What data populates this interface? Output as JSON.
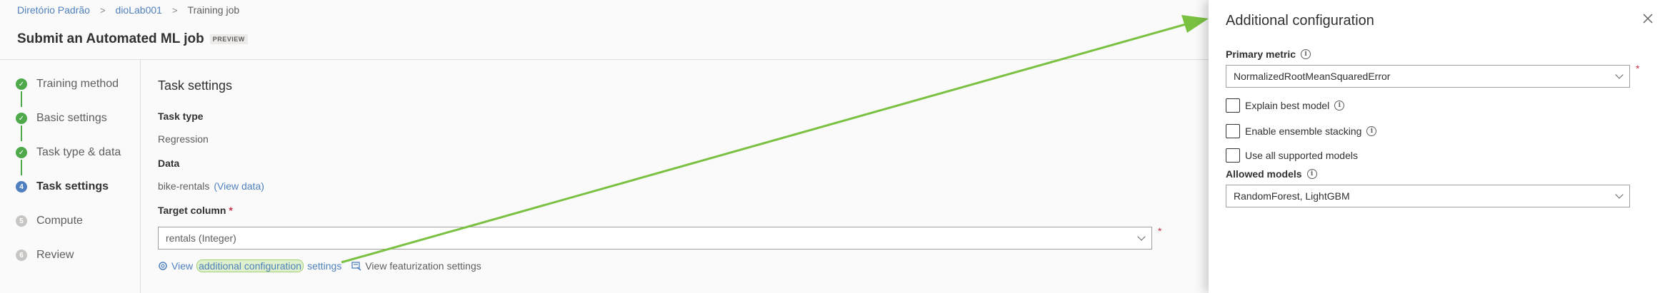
{
  "breadcrumb": {
    "items": [
      "Diretório Padrão",
      "dioLab001",
      "Training job"
    ],
    "separator": ">"
  },
  "page": {
    "title": "Submit an Automated ML job",
    "badge": "PREVIEW"
  },
  "steps": [
    {
      "label": "Training method",
      "status": "done",
      "marker": "✓"
    },
    {
      "label": "Basic settings",
      "status": "done",
      "marker": "✓"
    },
    {
      "label": "Task type & data",
      "status": "done",
      "marker": "✓"
    },
    {
      "label": "Task settings",
      "status": "current",
      "marker": "4"
    },
    {
      "label": "Compute",
      "status": "todo",
      "marker": "5"
    },
    {
      "label": "Review",
      "status": "todo",
      "marker": "6"
    }
  ],
  "task_settings": {
    "title": "Task settings",
    "task_type_label": "Task type",
    "task_type_value": "Regression",
    "data_label": "Data",
    "data_value": "bike-rentals",
    "view_data_link": "(View data)",
    "target_column_label": "Target column",
    "required_marker": "*",
    "target_column_value": "rentals (Integer)",
    "actions": {
      "view_prefix": "View",
      "additional_config_text": "additional configuration",
      "settings_suffix": "settings",
      "featurization_label": "View featurization settings"
    }
  },
  "panel": {
    "title": "Additional configuration",
    "close_icon": "close-icon",
    "primary_metric_label": "Primary metric",
    "primary_metric_value": "NormalizedRootMeanSquaredError",
    "required_marker": "*",
    "checkboxes": [
      {
        "label": "Explain best model",
        "checked": false,
        "info": true
      },
      {
        "label": "Enable ensemble stacking",
        "checked": false,
        "info": true
      },
      {
        "label": "Use all supported models",
        "checked": false,
        "info": false
      }
    ],
    "allowed_models_label": "Allowed models",
    "allowed_models_value": "RandomForest, LightGBM"
  },
  "colors": {
    "link": "#4f81bd",
    "done": "#4ea94b",
    "current": "#4f7fc0",
    "annotation_arrow": "#7ac142",
    "required": "#c4314b"
  }
}
